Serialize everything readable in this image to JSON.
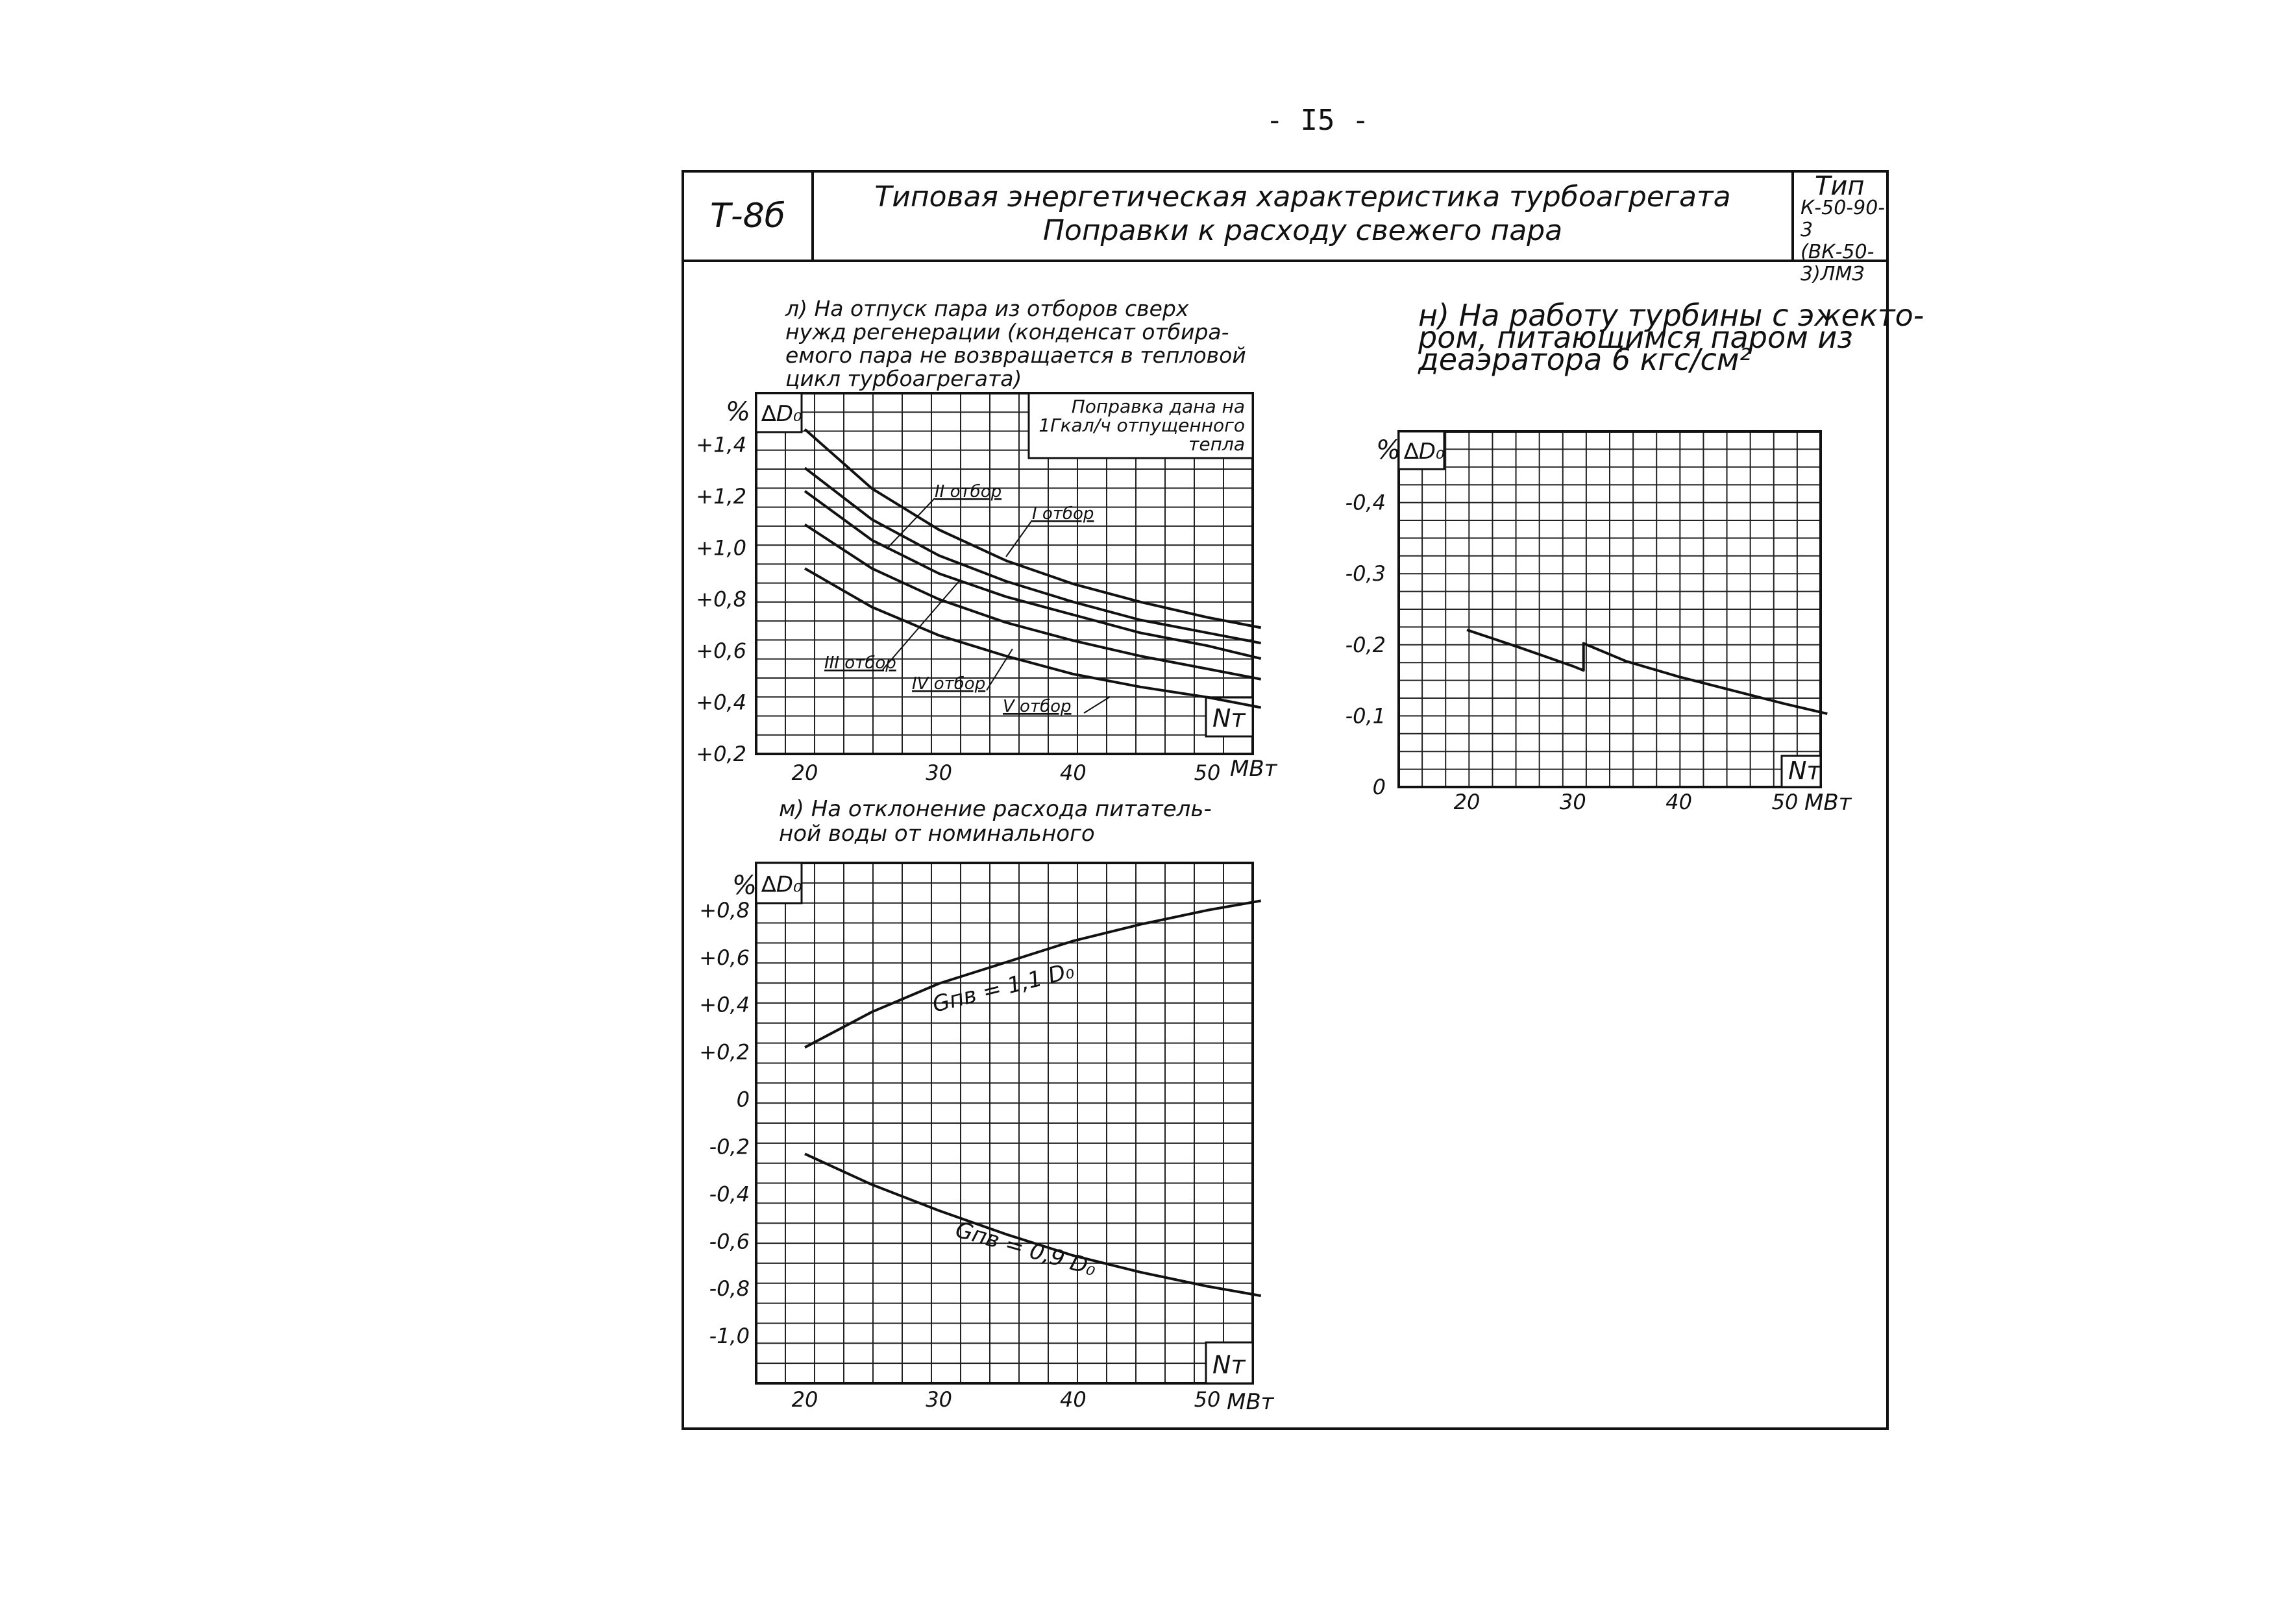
{
  "page_number": "- I5 -",
  "title_block": {
    "code": "Т-8б",
    "title_line1": "Типовая энергетическая характеристика турбоагрегата",
    "title_line2": "Поправки к расходу свежего пара",
    "type_label": "Тип",
    "type_line2": "К-50-90-3",
    "type_line3": "(ВК-50-3)ЛМЗ"
  },
  "chart_data": [
    {
      "id": "l",
      "type": "line",
      "caption_lines": [
        "л) На отпуск пара из отборов сверх",
        "нужд регенерации (конденсат отбира-",
        "емого пара не возвращается в тепловой",
        "цикл турбоагрегата)"
      ],
      "y_unit": "%",
      "y_symbol": "∆D₀",
      "x_symbol": "Nт",
      "x_unit": "МВт",
      "x_ticks": [
        "20",
        "30",
        "40",
        "50"
      ],
      "y_ticks": [
        "+1,4",
        "+1,2",
        "+1,0",
        "+0,8",
        "+0,6",
        "+0,4",
        "+0,2"
      ],
      "xlim": [
        20,
        55
      ],
      "ylim": [
        0.2,
        1.6
      ],
      "note_lines": [
        "Поправка дана на",
        "1Гкал/ч отпущенного",
        "тепла"
      ],
      "series": [
        {
          "name": "I отбор",
          "x": [
            20,
            25,
            30,
            35,
            40,
            45,
            50,
            54
          ],
          "y": [
            1.46,
            1.23,
            1.07,
            0.95,
            0.86,
            0.79,
            0.73,
            0.69
          ]
        },
        {
          "name": "II отбор",
          "x": [
            20,
            25,
            30,
            35,
            40,
            45,
            50,
            54
          ],
          "y": [
            1.31,
            1.11,
            0.97,
            0.87,
            0.79,
            0.72,
            0.67,
            0.63
          ]
        },
        {
          "name": "III отбор",
          "x": [
            20,
            25,
            30,
            35,
            40,
            45,
            50,
            54
          ],
          "y": [
            1.22,
            1.03,
            0.9,
            0.81,
            0.74,
            0.67,
            0.62,
            0.57
          ]
        },
        {
          "name": "IV отбор",
          "x": [
            20,
            25,
            30,
            35,
            40,
            45,
            50,
            54
          ],
          "y": [
            1.09,
            0.92,
            0.8,
            0.71,
            0.64,
            0.58,
            0.53,
            0.49
          ]
        },
        {
          "name": "V отбор",
          "x": [
            20,
            25,
            30,
            35,
            40,
            45,
            50,
            54
          ],
          "y": [
            0.92,
            0.77,
            0.66,
            0.58,
            0.51,
            0.46,
            0.42,
            0.38
          ]
        }
      ],
      "labels": [
        "II отбор",
        "I отбор",
        "III отбор",
        "IV отбор",
        "V отбор"
      ]
    },
    {
      "id": "m",
      "type": "line",
      "caption_lines": [
        "м) На отклонение расхода питатель-",
        "ной воды от номинального"
      ],
      "y_unit": "%",
      "y_symbol": "∆D₀",
      "x_symbol": "Nт",
      "x_unit": "МВт",
      "x_ticks": [
        "20",
        "30",
        "40",
        "50"
      ],
      "y_ticks": [
        "+0,8",
        "+0,6",
        "+0,4",
        "+0,2",
        "0",
        "-0,2",
        "-0,4",
        "-0,6",
        "-0,8",
        "-1,0"
      ],
      "xlim": [
        20,
        55
      ],
      "ylim": [
        -1.2,
        1.0
      ],
      "series": [
        {
          "name": "Gпв = 1,1 D₀",
          "x": [
            20,
            25,
            30,
            35,
            40,
            45,
            50,
            54
          ],
          "y": [
            0.22,
            0.37,
            0.49,
            0.58,
            0.67,
            0.74,
            0.8,
            0.84
          ]
        },
        {
          "name": "Gпв = 0,9 D₀",
          "x": [
            20,
            25,
            30,
            35,
            40,
            45,
            50,
            54
          ],
          "y": [
            -0.23,
            -0.36,
            -0.47,
            -0.57,
            -0.66,
            -0.73,
            -0.79,
            -0.83
          ]
        }
      ],
      "labels": [
        "Gпв = 1,1 D₀",
        "Gпв = 0,9 D₀"
      ]
    },
    {
      "id": "n",
      "type": "line",
      "caption_lines": [
        "н) На работу турбины с эжекто-",
        "ром, питающимся паром из",
        "деаэратора 6 кгс/см²"
      ],
      "y_unit": "%",
      "y_symbol": "∆D₀",
      "x_symbol": "Nт",
      "x_unit": "МВт",
      "x_ticks": [
        "20",
        "30",
        "40",
        "50"
      ],
      "y_ticks": [
        "-0,4",
        "-0,3",
        "-0,2",
        "-0,1",
        "0"
      ],
      "xlim": [
        12,
        55
      ],
      "ylim": [
        0,
        -0.5
      ],
      "series": [
        {
          "name": "",
          "x": [
            20,
            25,
            30,
            31,
            31,
            35,
            40,
            45,
            50,
            54
          ],
          "y": [
            -0.221,
            -0.196,
            -0.17,
            -0.164,
            -0.202,
            -0.177,
            -0.155,
            -0.136,
            -0.117,
            -0.103
          ]
        }
      ]
    }
  ]
}
